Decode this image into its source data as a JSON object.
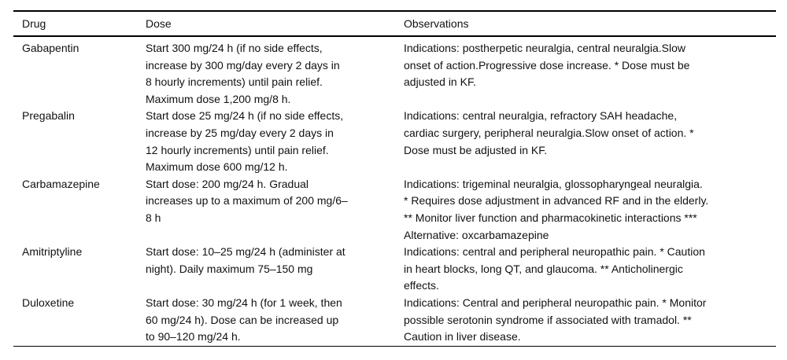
{
  "page": {
    "background_color": "#ffffff",
    "text_color": "#111111",
    "rule_color": "#000000"
  },
  "table": {
    "columns": [
      {
        "key": "drug",
        "label": "Drug"
      },
      {
        "key": "dose",
        "label": "Dose"
      },
      {
        "key": "observations",
        "label": "Observations"
      }
    ],
    "rows": [
      {
        "drug": "Gabapentin",
        "dose": "Start 300 mg/24 h (if no side effects,\nincrease by 300 mg/day every 2 days in\n8 hourly increments) until pain relief.\nMaximum dose 1,200 mg/8 h.",
        "observations": "Indications: postherpetic neuralgia, central neuralgia.Slow\nonset of action.Progressive dose increase. * Dose must be\nadjusted in KF."
      },
      {
        "drug": "Pregabalin",
        "dose": "Start dose 25 mg/24 h (if no side effects,\nincrease by 25 mg/day every 2 days in\n12 hourly increments) until pain relief.\nMaximum dose 600 mg/12 h.",
        "observations": "Indications: central neuralgia, refractory SAH headache,\ncardiac surgery, peripheral neuralgia.Slow onset of action. *\nDose must be adjusted in KF."
      },
      {
        "drug": "Carbamazepine",
        "dose": "Start dose: 200 mg/24 h. Gradual\nincreases up to a maximum of 200 mg/6–\n8 h",
        "observations": "Indications: trigeminal neuralgia, glossopharyngeal neuralgia.\n* Requires dose adjustment in advanced RF and in the elderly.\n** Monitor liver function and pharmacokinetic interactions ***\nAlternative: oxcarbamazepine"
      },
      {
        "drug": "Amitriptyline",
        "dose": "Start dose: 10–25 mg/24 h (administer at\nnight). Daily maximum 75–150 mg",
        "observations": "Indications: central and peripheral neuropathic pain. * Caution\nin heart blocks, long QT, and glaucoma. ** Anticholinergic\neffects."
      },
      {
        "drug": "Duloxetine",
        "dose": "Start dose: 30 mg/24 h (for 1 week, then\n60 mg/24 h). Dose can be increased up\nto 90–120 mg/24 h.",
        "observations": "Indications: Central and peripheral neuropathic pain. * Monitor\npossible serotonin syndrome if associated with tramadol. **\nCaution in liver disease."
      }
    ]
  }
}
